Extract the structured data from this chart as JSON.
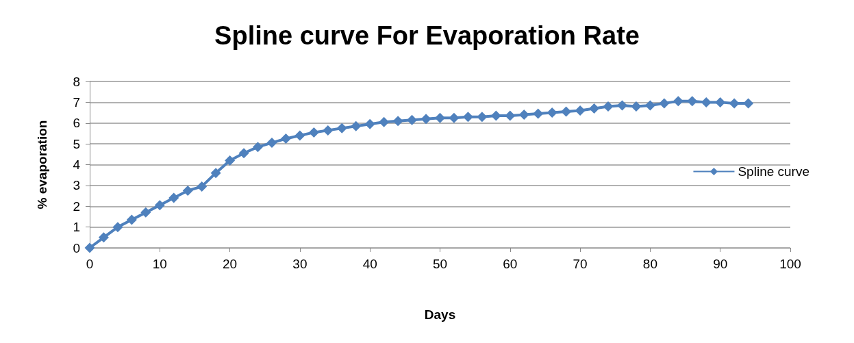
{
  "chart_data": {
    "type": "line",
    "title": "Spline curve For Evaporation Rate",
    "xlabel": "Days",
    "ylabel": "% evaporation",
    "x": [
      0,
      2,
      4,
      6,
      8,
      10,
      12,
      14,
      16,
      18,
      20,
      22,
      24,
      26,
      28,
      30,
      32,
      34,
      36,
      38,
      40,
      42,
      44,
      46,
      48,
      50,
      52,
      54,
      56,
      58,
      60,
      62,
      64,
      66,
      68,
      70,
      72,
      74,
      76,
      78,
      80,
      82,
      84,
      86,
      88,
      90,
      92,
      94
    ],
    "series": [
      {
        "name": "Spline curve",
        "color": "#4f81bd",
        "values": [
          0,
          0.5,
          1.0,
          1.35,
          1.7,
          2.05,
          2.4,
          2.75,
          2.95,
          3.6,
          4.2,
          4.55,
          4.85,
          5.05,
          5.25,
          5.4,
          5.55,
          5.65,
          5.75,
          5.85,
          5.95,
          6.05,
          6.1,
          6.15,
          6.2,
          6.25,
          6.25,
          6.3,
          6.3,
          6.35,
          6.35,
          6.4,
          6.45,
          6.5,
          6.55,
          6.6,
          6.7,
          6.8,
          6.85,
          6.8,
          6.85,
          6.95,
          7.05,
          7.05,
          7.0,
          7.0,
          6.95,
          6.95
        ]
      }
    ],
    "xlim": [
      0,
      100
    ],
    "xticks": [
      0,
      10,
      20,
      30,
      40,
      50,
      60,
      70,
      80,
      90,
      100
    ],
    "ylim": [
      0,
      8
    ],
    "yticks": [
      0,
      1,
      2,
      3,
      4,
      5,
      6,
      7,
      8
    ],
    "grid": "y",
    "legend": "right",
    "marker": "diamond",
    "line_style": "solid"
  }
}
